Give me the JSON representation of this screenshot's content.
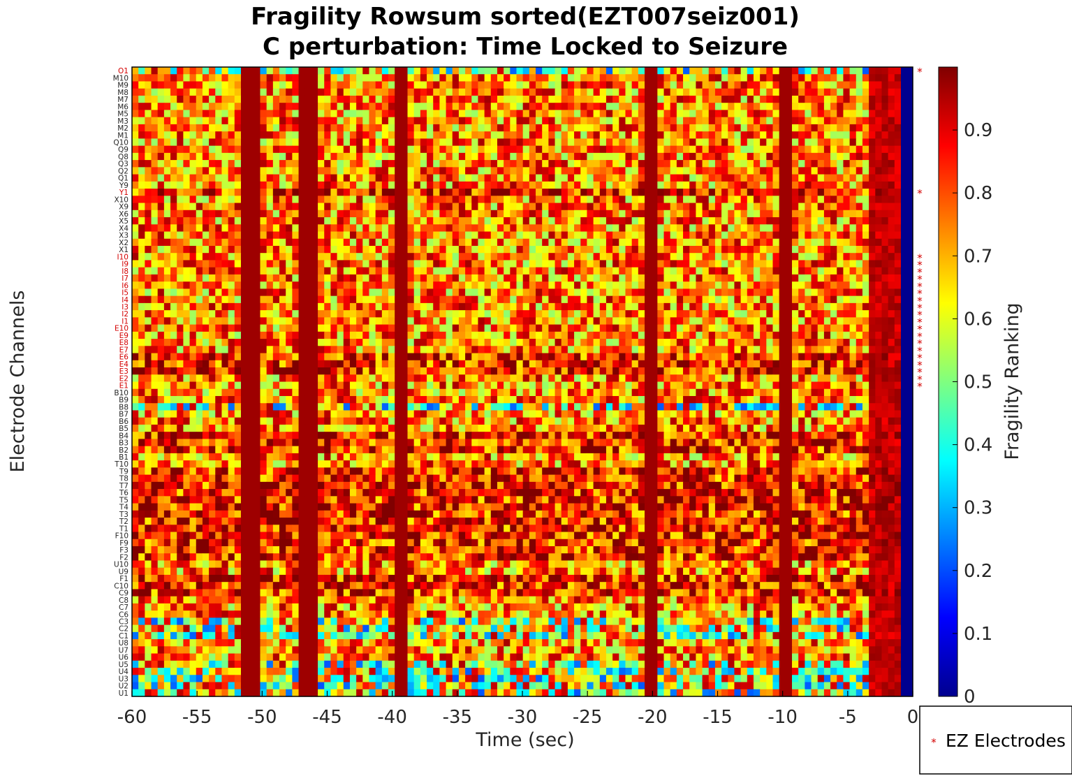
{
  "chart_data": {
    "type": "heatmap",
    "title": [
      "Fragility Rowsum sorted(EZT007seiz001)",
      "C perturbation:  Time Locked to Seizure"
    ],
    "xlabel": "Time (sec)",
    "ylabel": "Electrode Channels",
    "colorbar_label": "Fragility Ranking",
    "colormap": "jet",
    "xlim": [
      -60,
      0
    ],
    "x_ticks": [
      "-60",
      "-55",
      "-50",
      "-45",
      "-40",
      "-35",
      "-30",
      "-25",
      "-20",
      "-15",
      "-10",
      "-5",
      "0"
    ],
    "clim": [
      0,
      1
    ],
    "colorbar_ticks": [
      "0",
      "0.1",
      "0.2",
      "0.3",
      "0.4",
      "0.5",
      "0.6",
      "0.7",
      "0.8",
      "0.9"
    ],
    "channels": [
      "O1",
      "M10",
      "M9",
      "M8",
      "M7",
      "M6",
      "M5",
      "M3",
      "M2",
      "M1",
      "Q10",
      "Q9",
      "Q8",
      "Q3",
      "Q2",
      "Q1",
      "Y9",
      "Y1",
      "X10",
      "X9",
      "X6",
      "X5",
      "X4",
      "X3",
      "X2",
      "X1",
      "I10",
      "I9",
      "I8",
      "I7",
      "I6",
      "I5",
      "I4",
      "I3",
      "I2",
      "I1",
      "E10",
      "E9",
      "E8",
      "E7",
      "E6",
      "E4",
      "E3",
      "E2",
      "E1",
      "B10",
      "B9",
      "B8",
      "B7",
      "B6",
      "B5",
      "B4",
      "B3",
      "B2",
      "B1",
      "T10",
      "T9",
      "T8",
      "T7",
      "T6",
      "T5",
      "T4",
      "T3",
      "T2",
      "T1",
      "F10",
      "F9",
      "F3",
      "F2",
      "U10",
      "U9",
      "F1",
      "C10",
      "C9",
      "C8",
      "C7",
      "C6",
      "C3",
      "C2",
      "C1",
      "U8",
      "U7",
      "U6",
      "U5",
      "U4",
      "U3",
      "U2",
      "U1"
    ],
    "ez_electrodes": [
      "O1",
      "Y1",
      "I10",
      "I9",
      "I8",
      "I7",
      "I6",
      "I5",
      "I4",
      "I3",
      "I2",
      "I1",
      "E10",
      "E9",
      "E8",
      "E7",
      "E6",
      "E4",
      "E3",
      "E2",
      "E1"
    ],
    "legend": {
      "entries": [
        "EZ Electrodes"
      ],
      "location": "outside-bottom-right"
    },
    "ez_color": "#d40000",
    "grid": false
  }
}
